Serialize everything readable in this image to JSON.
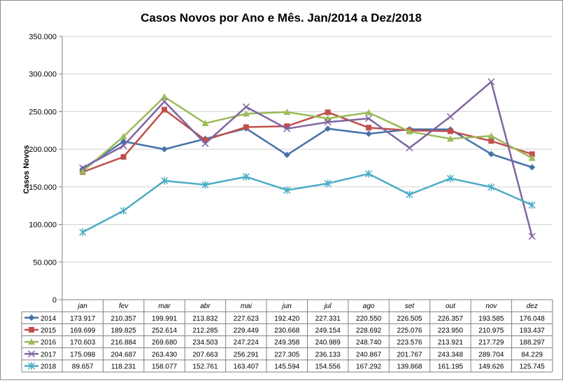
{
  "chart_data": {
    "type": "line",
    "title": "Casos Novos por Ano e Mês. Jan/2014 a Dez/2018",
    "ylabel": "Casos Novos",
    "xlabel": "",
    "ylim": [
      0,
      350000
    ],
    "yticks": [
      0,
      50000,
      100000,
      150000,
      200000,
      250000,
      300000,
      350000
    ],
    "ytick_labels": [
      "0",
      "50.000",
      "100.000",
      "150.000",
      "200.000",
      "250.000",
      "300.000",
      "350.000"
    ],
    "grid": true,
    "legend": "data-table",
    "categories": [
      "jan",
      "fev",
      "mar",
      "abr",
      "mai",
      "jun",
      "jul",
      "ago",
      "set",
      "out",
      "nov",
      "dez"
    ],
    "series": [
      {
        "name": "2014",
        "color": "#4472A8",
        "marker": "diamond",
        "values": [
          173917,
          210357,
          199991,
          213832,
          227623,
          192420,
          227331,
          220550,
          226505,
          226357,
          193585,
          176048
        ],
        "labels": [
          "173.917",
          "210.357",
          "199.991",
          "213.832",
          "227.623",
          "192.420",
          "227.331",
          "220.550",
          "226.505",
          "226.357",
          "193.585",
          "176.048"
        ]
      },
      {
        "name": "2015",
        "color": "#C0504D",
        "marker": "square",
        "values": [
          169699,
          189825,
          252614,
          212285,
          229449,
          230668,
          249154,
          228692,
          225076,
          223950,
          210975,
          193437
        ],
        "labels": [
          "169.699",
          "189.825",
          "252.614",
          "212.285",
          "229.449",
          "230.668",
          "249.154",
          "228.692",
          "225.076",
          "223.950",
          "210.975",
          "193.437"
        ]
      },
      {
        "name": "2016",
        "color": "#9BBB59",
        "marker": "triangle",
        "values": [
          170603,
          216884,
          269680,
          234503,
          247224,
          249358,
          240989,
          248740,
          223576,
          213921,
          217729,
          188297
        ],
        "labels": [
          "170.603",
          "216.884",
          "269.680",
          "234.503",
          "247.224",
          "249.358",
          "240.989",
          "248.740",
          "223.576",
          "213.921",
          "217.729",
          "188.297"
        ]
      },
      {
        "name": "2017",
        "color": "#8064A2",
        "marker": "x",
        "values": [
          175098,
          204687,
          263430,
          207663,
          256291,
          227305,
          236133,
          240867,
          201767,
          243348,
          289704,
          84229
        ],
        "labels": [
          "175.098",
          "204.687",
          "263.430",
          "207.663",
          "256.291",
          "227.305",
          "236.133",
          "240.867",
          "201.767",
          "243.348",
          "289.704",
          "84.229"
        ]
      },
      {
        "name": "2018",
        "color": "#4BACC6",
        "marker": "star",
        "values": [
          89657,
          118231,
          158077,
          152761,
          163407,
          145594,
          154556,
          167292,
          139868,
          161195,
          149626,
          125745
        ],
        "labels": [
          "89.657",
          "118.231",
          "158.077",
          "152.761",
          "163.407",
          "145.594",
          "154.556",
          "167.292",
          "139.868",
          "161.195",
          "149.626",
          "125.745"
        ]
      }
    ]
  }
}
